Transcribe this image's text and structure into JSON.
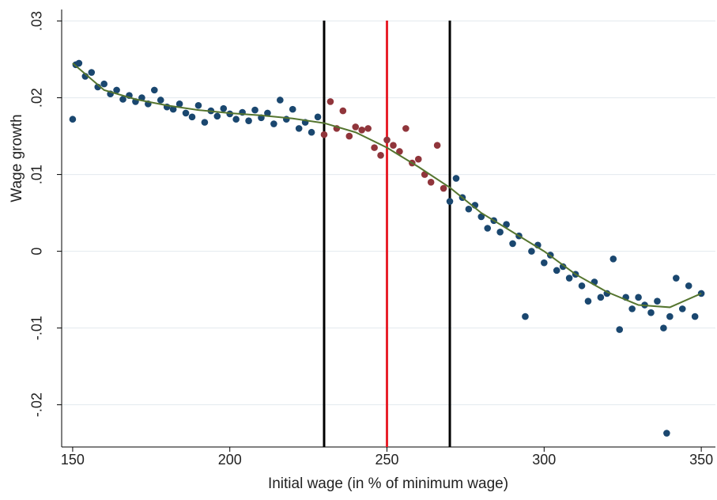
{
  "chart_data": {
    "type": "scatter",
    "xlabel": "Initial wage (in % of minimum wage)",
    "ylabel": "Wage growth",
    "xlim": [
      146.5,
      354.5
    ],
    "ylim": [
      -0.0255,
      0.0315
    ],
    "xticks": [
      150,
      200,
      250,
      300,
      350
    ],
    "yticks": [
      {
        "value": 0.03,
        "label": ".03"
      },
      {
        "value": 0.02,
        "label": ".02"
      },
      {
        "value": 0.01,
        "label": ".01"
      },
      0,
      {
        "value": -0.01,
        "label": "-.01"
      },
      {
        "value": -0.02,
        "label": "-.02"
      }
    ],
    "grid": true,
    "series": [
      {
        "color": "#1a476f",
        "x": [
          150,
          151,
          152,
          154,
          156,
          158,
          160,
          162,
          164,
          166,
          168,
          170,
          172,
          174,
          176,
          178,
          180,
          182,
          184,
          186,
          188,
          190,
          192,
          194,
          196,
          198,
          200,
          202,
          204,
          206,
          208,
          210,
          212,
          214,
          216,
          218,
          220,
          222,
          224,
          226,
          228
        ],
        "values": [
          0.0172,
          0.0243,
          0.0245,
          0.0228,
          0.0233,
          0.0214,
          0.0218,
          0.0205,
          0.021,
          0.0198,
          0.0203,
          0.0195,
          0.02,
          0.0192,
          0.021,
          0.0197,
          0.0188,
          0.0185,
          0.0192,
          0.018,
          0.0175,
          0.019,
          0.0168,
          0.0183,
          0.0176,
          0.0186,
          0.0179,
          0.0172,
          0.0181,
          0.017,
          0.0184,
          0.0174,
          0.018,
          0.0166,
          0.0197,
          0.0172,
          0.0185,
          0.016,
          0.0168,
          0.0155,
          0.0175
        ]
      },
      {
        "color": "#90353b",
        "x": [
          230,
          232,
          234,
          236,
          238,
          240,
          242,
          244,
          246,
          248,
          250,
          252,
          254,
          256,
          258,
          260,
          262,
          264,
          266,
          268
        ],
        "values": [
          0.0152,
          0.0195,
          0.016,
          0.0183,
          0.015,
          0.0162,
          0.0158,
          0.016,
          0.0135,
          0.0125,
          0.0145,
          0.0138,
          0.013,
          0.016,
          0.0115,
          0.012,
          0.01,
          0.009,
          0.0138,
          0.0082
        ]
      },
      {
        "color": "#1a476f",
        "x": [
          270,
          272,
          274,
          276,
          278,
          280,
          282,
          284,
          286,
          288,
          290,
          292,
          294,
          296,
          298,
          300,
          302,
          304,
          306,
          308,
          310,
          312,
          314,
          316,
          318,
          320,
          322,
          324,
          326,
          328,
          330,
          332,
          334,
          336,
          338,
          339,
          340,
          342,
          344,
          346,
          348,
          350
        ],
        "values": [
          0.0065,
          0.0095,
          0.007,
          0.0055,
          0.006,
          0.0045,
          0.003,
          0.004,
          0.0025,
          0.0035,
          0.001,
          0.002,
          -0.0085,
          0,
          0.0008,
          -0.0015,
          -0.0005,
          -0.0025,
          -0.002,
          -0.0035,
          -0.003,
          -0.0045,
          -0.0065,
          -0.004,
          -0.006,
          -0.0055,
          -0.001,
          -0.0102,
          -0.006,
          -0.0075,
          -0.006,
          -0.007,
          -0.008,
          -0.0065,
          -0.01,
          -0.0237,
          -0.0085,
          -0.0035,
          -0.0075,
          -0.0045,
          -0.0085,
          -0.0055
        ]
      }
    ],
    "fit": {
      "color": "#55752f",
      "x": [
        150,
        160,
        170,
        180,
        190,
        200,
        210,
        220,
        230,
        240,
        250,
        260,
        270,
        280,
        290,
        300,
        310,
        320,
        330,
        340,
        350
      ],
      "values": [
        0.0245,
        0.021,
        0.0198,
        0.019,
        0.0184,
        0.018,
        0.0177,
        0.0173,
        0.0167,
        0.0155,
        0.0135,
        0.011,
        0.0083,
        0.005,
        0.0025,
        0,
        -0.003,
        -0.0053,
        -0.007,
        -0.0073,
        -0.0055
      ]
    },
    "vlines": [
      {
        "x": 230,
        "color": "#000000"
      },
      {
        "x": 250,
        "color": "#e8202a"
      },
      {
        "x": 270,
        "color": "#000000"
      }
    ]
  }
}
